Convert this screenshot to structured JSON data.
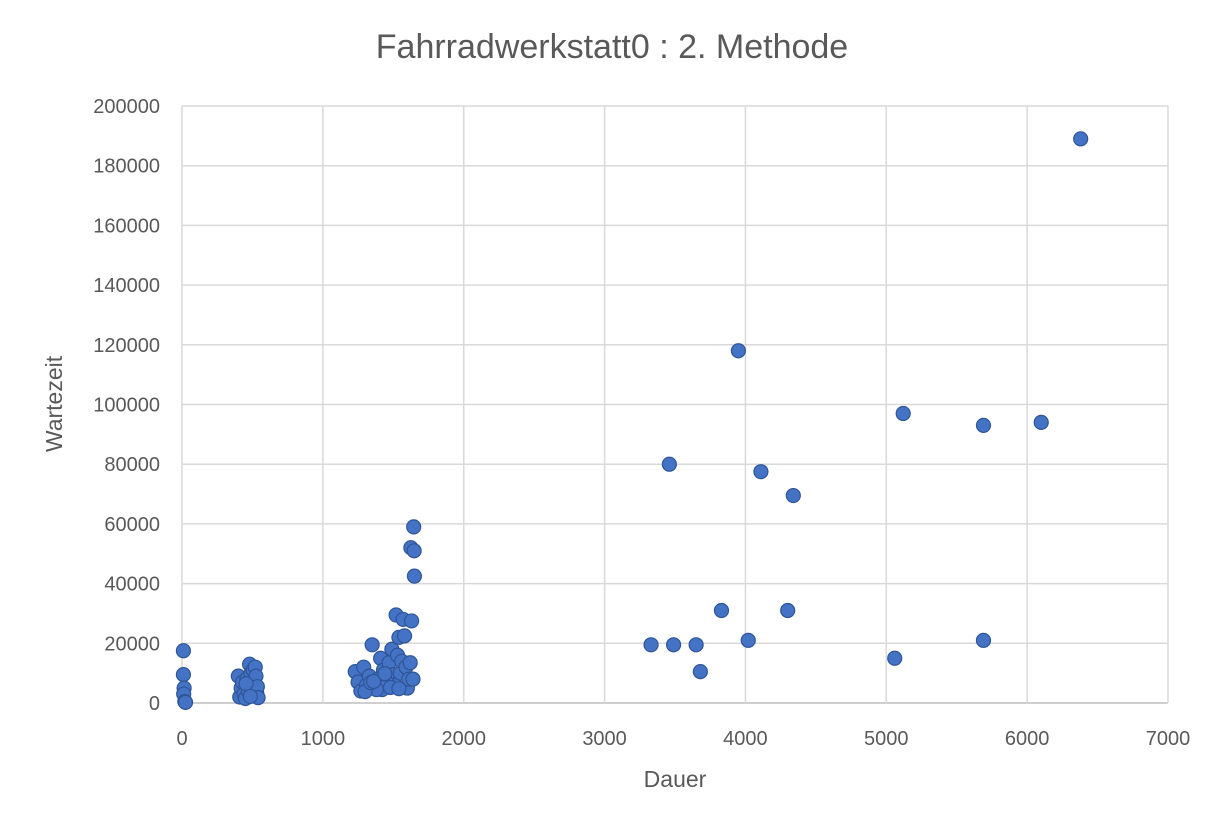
{
  "chart_data": {
    "type": "scatter",
    "title": "Fahrradwerkstatt0 : 2. Methode",
    "xlabel": "Dauer",
    "ylabel": "Wartezeit",
    "xlim": [
      0,
      7000
    ],
    "ylim": [
      0,
      200000
    ],
    "xticks": [
      "0",
      "1000",
      "2000",
      "3000",
      "4000",
      "5000",
      "6000",
      "7000"
    ],
    "yticks": [
      "0",
      "20000",
      "40000",
      "60000",
      "80000",
      "100000",
      "120000",
      "140000",
      "160000",
      "180000",
      "200000"
    ],
    "grid": true,
    "legend": "none",
    "marker_color": "#4472c4",
    "series": [
      {
        "points": [
          [
            10,
            17500
          ],
          [
            10,
            9500
          ],
          [
            15,
            5000
          ],
          [
            12,
            3000
          ],
          [
            20,
            500
          ],
          [
            25,
            200
          ],
          [
            400,
            9000
          ],
          [
            410,
            2000
          ],
          [
            420,
            5000
          ],
          [
            430,
            7000
          ],
          [
            440,
            3000
          ],
          [
            450,
            1500
          ],
          [
            460,
            8000
          ],
          [
            470,
            4000
          ],
          [
            480,
            13000
          ],
          [
            490,
            10000
          ],
          [
            495,
            6000
          ],
          [
            500,
            2500
          ],
          [
            505,
            11000
          ],
          [
            510,
            7500
          ],
          [
            515,
            4500
          ],
          [
            520,
            12000
          ],
          [
            525,
            9000
          ],
          [
            530,
            3500
          ],
          [
            535,
            5500
          ],
          [
            540,
            1800
          ],
          [
            455,
            6500
          ],
          [
            485,
            2200
          ],
          [
            1230,
            10500
          ],
          [
            1250,
            7000
          ],
          [
            1270,
            4000
          ],
          [
            1290,
            12000
          ],
          [
            1310,
            6000
          ],
          [
            1330,
            9000
          ],
          [
            1350,
            19500
          ],
          [
            1370,
            5000
          ],
          [
            1390,
            8000
          ],
          [
            1410,
            15000
          ],
          [
            1420,
            4500
          ],
          [
            1430,
            11000
          ],
          [
            1450,
            7500
          ],
          [
            1470,
            13500
          ],
          [
            1490,
            18000
          ],
          [
            1500,
            9500
          ],
          [
            1510,
            6000
          ],
          [
            1520,
            29500
          ],
          [
            1530,
            16000
          ],
          [
            1540,
            22000
          ],
          [
            1550,
            10000
          ],
          [
            1560,
            14000
          ],
          [
            1570,
            28000
          ],
          [
            1580,
            22500
          ],
          [
            1590,
            12000
          ],
          [
            1600,
            5000
          ],
          [
            1610,
            8000
          ],
          [
            1620,
            13500
          ],
          [
            1625,
            52000
          ],
          [
            1630,
            27500
          ],
          [
            1640,
            8000
          ],
          [
            1645,
            59000
          ],
          [
            1648,
            51000
          ],
          [
            1650,
            42500
          ],
          [
            1460,
            6500
          ],
          [
            1380,
            4500
          ],
          [
            1300,
            3800
          ],
          [
            1340,
            6800
          ],
          [
            1480,
            5200
          ],
          [
            1540,
            4800
          ],
          [
            1440,
            9800
          ],
          [
            1360,
            7200
          ],
          [
            3330,
            19500
          ],
          [
            3460,
            80000
          ],
          [
            3490,
            19500
          ],
          [
            3650,
            19500
          ],
          [
            3680,
            10500
          ],
          [
            3830,
            31000
          ],
          [
            3950,
            118000
          ],
          [
            4020,
            21000
          ],
          [
            4110,
            77500
          ],
          [
            4300,
            31000
          ],
          [
            4340,
            69500
          ],
          [
            5060,
            15000
          ],
          [
            5120,
            97000
          ],
          [
            5690,
            93000
          ],
          [
            5690,
            21000
          ],
          [
            6100,
            94000
          ],
          [
            6380,
            189000
          ]
        ]
      }
    ]
  }
}
